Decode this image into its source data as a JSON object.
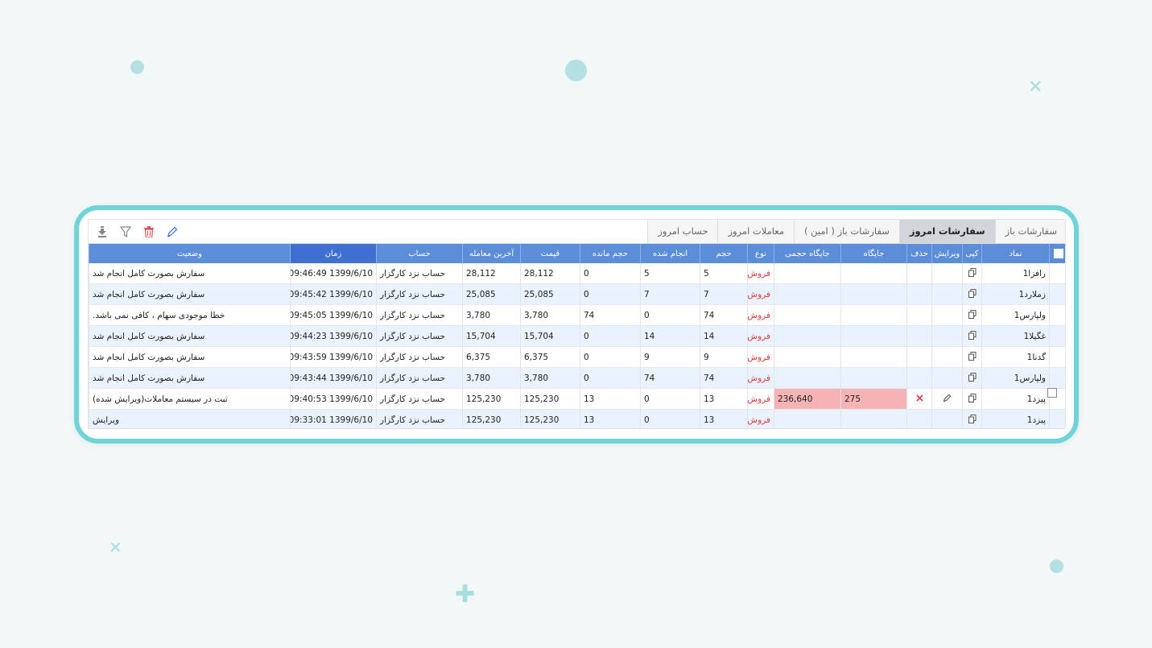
{
  "toolbar": {
    "icons": [
      "download-icon",
      "filter-icon",
      "trash-icon",
      "pencil-icon"
    ],
    "colors": {
      "download": "#888888",
      "filter": "#888888",
      "trash": "#e55555",
      "pencil": "#3a6fd0"
    }
  },
  "tabs": [
    {
      "label": "سفارشات باز"
    },
    {
      "label": "سفارشات امروز",
      "active": true
    },
    {
      "label": "سفارشات باز ( امین )"
    },
    {
      "label": "معاملات امروز"
    },
    {
      "label": "حساب امروز"
    }
  ],
  "table": {
    "headers": {
      "symbol": "نماد",
      "copy": "کپی",
      "edit": "ویرایش",
      "delete": "حذف",
      "position": "جایگاه",
      "volume_position": "جایگاه حجمی",
      "type": "نوع",
      "volume": "حجم",
      "done": "انجام شده",
      "remaining": "حجم مانده",
      "price": "قیمت",
      "last_trade": "آخرین معامله",
      "account": "حساب",
      "time": "زمان",
      "status": "وضعیت"
    },
    "rows": [
      {
        "symbol": "رافزا1",
        "position": "",
        "volume_position": "",
        "type": "فروش",
        "volume": "5",
        "done": "5",
        "remaining": "0",
        "price": "28,112",
        "last_trade": "28,112",
        "account": "حساب نزد کارگزار",
        "time": "1399/6/10 09:46:49",
        "status": "سفارش بصورت کامل انجام شد"
      },
      {
        "symbol": "زملارد1",
        "position": "",
        "volume_position": "",
        "type": "فروش",
        "volume": "7",
        "done": "7",
        "remaining": "0",
        "price": "25,085",
        "last_trade": "25,085",
        "account": "حساب نزد کارگزار",
        "time": "1399/6/10 09:45:42",
        "status": "سفارش بصورت کامل انجام شد"
      },
      {
        "symbol": "ولپارس1",
        "position": "",
        "volume_position": "",
        "type": "فروش",
        "volume": "74",
        "done": "0",
        "remaining": "74",
        "price": "3,780",
        "last_trade": "3,780",
        "account": "حساب نزد کارگزار",
        "time": "1399/6/10 09:45:05",
        "status": "خطا موجودی سهام ، کافی نمی باشد."
      },
      {
        "symbol": "غگیلا1",
        "position": "",
        "volume_position": "",
        "type": "فروش",
        "volume": "14",
        "done": "14",
        "remaining": "0",
        "price": "15,704",
        "last_trade": "15,704",
        "account": "حساب نزد کارگزار",
        "time": "1399/6/10 09:44:23",
        "status": "سفارش بصورت کامل انجام شد"
      },
      {
        "symbol": "گدنا1",
        "position": "",
        "volume_position": "",
        "type": "فروش",
        "volume": "9",
        "done": "9",
        "remaining": "0",
        "price": "6,375",
        "last_trade": "6,375",
        "account": "حساب نزد کارگزار",
        "time": "1399/6/10 09:43:59",
        "status": "سفارش بصورت کامل انجام شد"
      },
      {
        "symbol": "ولپارس1",
        "position": "",
        "volume_position": "",
        "type": "فروش",
        "volume": "74",
        "done": "74",
        "remaining": "0",
        "price": "3,780",
        "last_trade": "3,780",
        "account": "حساب نزد کارگزار",
        "time": "1399/6/10 09:43:44",
        "status": "سفارش بصورت کامل انجام شد"
      },
      {
        "symbol": "پیزد1",
        "position": "275",
        "volume_position": "236,640",
        "type": "فروش",
        "volume": "13",
        "done": "0",
        "remaining": "13",
        "price": "125,230",
        "last_trade": "125,230",
        "account": "حساب نزد کارگزار",
        "time": "1399/6/10 09:40:53",
        "status": "ثبت در سیستم معاملات(ویرایش شده)",
        "editable": true
      },
      {
        "symbol": "پیزد1",
        "position": "",
        "volume_position": "",
        "type": "فروش",
        "volume": "13",
        "done": "0",
        "remaining": "13",
        "price": "125,230",
        "last_trade": "125,230",
        "account": "حساب نزد کارگزار",
        "time": "1399/6/10 09:33:01",
        "status": "ویرایش"
      }
    ]
  },
  "colors": {
    "accent": "#6fd3d9",
    "header": "#5b8dd8",
    "header_active": "#3e6fd1",
    "sell": "#e03a3a",
    "highlight": "#f6b3b5",
    "row_alt": "#eaf2fe"
  }
}
